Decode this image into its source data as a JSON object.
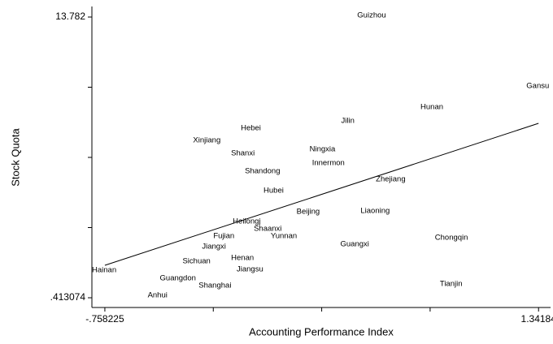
{
  "chart_data": {
    "type": "scatter",
    "xlabel": "Accounting Performance Index",
    "ylabel": "Stock Quota",
    "xlim": [
      -0.821,
      1.4
    ],
    "ylim": [
      -0.05,
      14.284
    ],
    "xticks": [
      {
        "value": -0.758225,
        "label": "-.758225"
      },
      {
        "value": 1.34184,
        "label": "1.34184"
      }
    ],
    "yticks": [
      {
        "value": 0.413074,
        "label": ".413074"
      },
      {
        "value": 13.782,
        "label": "13.782"
      }
    ],
    "xminor_ticks": [
      -0.233209,
      0.291807,
      0.816824
    ],
    "yminor_ticks": [
      3.755306,
      7.097537,
      10.439769
    ],
    "color": "#000000",
    "series": [
      {
        "name": "Stock Quota",
        "labels": [
          "Guizhou",
          "Gansu",
          "Hunan",
          "Jilin",
          "Hebei",
          "Xinjiang",
          "Ningxia",
          "Shanxi",
          "Innermon",
          "Shandong",
          "Zhejiang",
          "Hubei",
          "Beijing",
          "Liaoning",
          "Heilongj",
          "Shaanxi",
          "Fujian",
          "Yunnan",
          "Chongqin",
          "Jiangxi",
          "Guangxi",
          "Henan",
          "Sichuan",
          "Jiangsu",
          "Hainan",
          "Guangdon",
          "Shanghai",
          "Tianjin",
          "Anhui"
        ],
        "x": [
          0.464,
          1.283,
          0.77,
          0.386,
          -0.1,
          -0.331,
          0.233,
          -0.147,
          0.245,
          -0.08,
          0.554,
          0.01,
          0.17,
          0.48,
          -0.139,
          -0.037,
          -0.233,
          0.045,
          0.84,
          -0.288,
          0.382,
          -0.147,
          -0.382,
          -0.12,
          -0.821,
          -0.492,
          -0.304,
          0.864,
          -0.551
        ],
        "values": [
          13.859,
          10.498,
          9.493,
          8.836,
          8.488,
          7.909,
          7.484,
          7.291,
          6.827,
          6.441,
          6.055,
          5.513,
          4.509,
          4.547,
          4.045,
          3.697,
          3.349,
          3.349,
          3.272,
          2.847,
          2.963,
          2.306,
          2.152,
          1.765,
          1.727,
          1.34,
          0.993,
          1.07,
          0.529
        ]
      }
    ],
    "fit_line": {
      "x": [
        -0.758225,
        1.34184
      ],
      "y": [
        1.958,
        8.72
      ]
    }
  }
}
